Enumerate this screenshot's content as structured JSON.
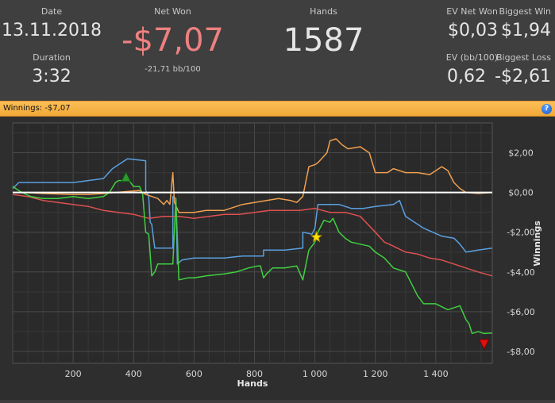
{
  "stats": {
    "date_label": "Date",
    "date_value": "13.11.2018",
    "duration_label": "Duration",
    "duration_value": "3:32",
    "net_won_label": "Net Won",
    "net_won_value": "-$7,07",
    "net_won_bb": "-21,71 bb/100",
    "hands_label": "Hands",
    "hands_value": "1587",
    "ev_net_won_label": "EV Net Won",
    "ev_net_won_value": "$0,03",
    "biggest_win_label": "Biggest Win",
    "biggest_win_value": "$1,94",
    "ev_bb_label": "EV (bb/100)",
    "ev_bb_value": "0,62",
    "biggest_loss_label": "Biggest Loss",
    "biggest_loss_value": "-$2,61"
  },
  "banner": {
    "text": "Winnings: -$7,07",
    "help_icon": "?"
  },
  "colors": {
    "net_won": "#f08080",
    "banner": "#f7b347"
  },
  "chart_data": {
    "type": "line",
    "xlabel": "Hands",
    "ylabel": "Winnings",
    "xlim": [
      0,
      1587
    ],
    "ylim": [
      -8.6,
      3.5
    ],
    "x_ticks": [
      200,
      400,
      600,
      800,
      1000,
      1200,
      1400
    ],
    "x_tick_labels": [
      "200",
      "400",
      "600",
      "800",
      "1 000",
      "1 200",
      "1 400"
    ],
    "y_ticks": [
      2,
      0,
      -2,
      -4,
      -6,
      -8
    ],
    "y_tick_labels": [
      "$2,00",
      "$0,00",
      "-$2,00",
      "-$4,00",
      "-$6,00",
      "-$8,00"
    ],
    "grid": true,
    "series": [
      {
        "color": "#5aa0e0",
        "points": [
          [
            0,
            0.2
          ],
          [
            20,
            0.5
          ],
          [
            100,
            0.5
          ],
          [
            200,
            0.5
          ],
          [
            300,
            0.7
          ],
          [
            330,
            1.2
          ],
          [
            380,
            1.7
          ],
          [
            440,
            1.6
          ],
          [
            440,
            0.1
          ],
          [
            450,
            -0.2
          ],
          [
            455,
            -1.5
          ],
          [
            460,
            -1.6
          ],
          [
            470,
            -2.8
          ],
          [
            530,
            -2.8
          ],
          [
            530,
            -0.2
          ],
          [
            540,
            -0.3
          ],
          [
            545,
            -3.6
          ],
          [
            560,
            -3.4
          ],
          [
            600,
            -3.3
          ],
          [
            700,
            -3.3
          ],
          [
            760,
            -3.2
          ],
          [
            800,
            -3.2
          ],
          [
            830,
            -3.2
          ],
          [
            830,
            -2.9
          ],
          [
            900,
            -2.9
          ],
          [
            960,
            -2.8
          ],
          [
            960,
            -2.0
          ],
          [
            990,
            -2.1
          ],
          [
            1000,
            -1.8
          ],
          [
            1010,
            -0.6
          ],
          [
            1050,
            -0.6
          ],
          [
            1080,
            -0.6
          ],
          [
            1120,
            -0.8
          ],
          [
            1160,
            -0.8
          ],
          [
            1200,
            -0.7
          ],
          [
            1260,
            -0.6
          ],
          [
            1280,
            -0.4
          ],
          [
            1300,
            -1.2
          ],
          [
            1360,
            -1.8
          ],
          [
            1420,
            -2.2
          ],
          [
            1460,
            -2.3
          ],
          [
            1480,
            -2.6
          ],
          [
            1500,
            -3.0
          ],
          [
            1540,
            -2.9
          ],
          [
            1587,
            -2.8
          ]
        ]
      },
      {
        "color": "#f0a050",
        "points": [
          [
            0,
            0.0
          ],
          [
            40,
            0.0
          ],
          [
            100,
            -0.05
          ],
          [
            200,
            -0.1
          ],
          [
            250,
            -0.1
          ],
          [
            300,
            -0.05
          ],
          [
            340,
            0.0
          ],
          [
            380,
            0.05
          ],
          [
            420,
            0.1
          ],
          [
            440,
            -0.1
          ],
          [
            480,
            -0.3
          ],
          [
            500,
            -0.6
          ],
          [
            510,
            -0.4
          ],
          [
            520,
            -0.6
          ],
          [
            530,
            1.0
          ],
          [
            535,
            -0.5
          ],
          [
            550,
            -1.0
          ],
          [
            600,
            -1.0
          ],
          [
            640,
            -0.9
          ],
          [
            700,
            -0.9
          ],
          [
            760,
            -0.6
          ],
          [
            800,
            -0.5
          ],
          [
            840,
            -0.4
          ],
          [
            880,
            -0.3
          ],
          [
            920,
            -0.4
          ],
          [
            940,
            -0.5
          ],
          [
            960,
            -0.2
          ],
          [
            980,
            1.3
          ],
          [
            1000,
            1.4
          ],
          [
            1010,
            1.5
          ],
          [
            1040,
            2.0
          ],
          [
            1050,
            2.6
          ],
          [
            1070,
            2.7
          ],
          [
            1090,
            2.4
          ],
          [
            1110,
            2.2
          ],
          [
            1150,
            2.3
          ],
          [
            1180,
            2.0
          ],
          [
            1200,
            1.0
          ],
          [
            1240,
            1.0
          ],
          [
            1260,
            1.2
          ],
          [
            1300,
            1.0
          ],
          [
            1340,
            1.0
          ],
          [
            1380,
            0.9
          ],
          [
            1420,
            1.3
          ],
          [
            1440,
            1.1
          ],
          [
            1460,
            0.5
          ],
          [
            1480,
            0.2
          ],
          [
            1500,
            0.0
          ],
          [
            1540,
            -0.05
          ],
          [
            1587,
            0.0
          ]
        ]
      },
      {
        "color": "#e05050",
        "points": [
          [
            0,
            -0.1
          ],
          [
            50,
            -0.2
          ],
          [
            100,
            -0.4
          ],
          [
            150,
            -0.5
          ],
          [
            200,
            -0.6
          ],
          [
            250,
            -0.7
          ],
          [
            300,
            -0.9
          ],
          [
            350,
            -1.0
          ],
          [
            400,
            -1.1
          ],
          [
            450,
            -1.3
          ],
          [
            500,
            -1.2
          ],
          [
            550,
            -1.2
          ],
          [
            600,
            -1.3
          ],
          [
            650,
            -1.2
          ],
          [
            700,
            -1.1
          ],
          [
            750,
            -1.1
          ],
          [
            800,
            -1.0
          ],
          [
            850,
            -0.9
          ],
          [
            900,
            -0.9
          ],
          [
            950,
            -0.9
          ],
          [
            1000,
            -0.8
          ],
          [
            1050,
            -1.0
          ],
          [
            1100,
            -1.0
          ],
          [
            1150,
            -1.2
          ],
          [
            1200,
            -2.0
          ],
          [
            1230,
            -2.5
          ],
          [
            1260,
            -2.7
          ],
          [
            1300,
            -3.0
          ],
          [
            1340,
            -3.1
          ],
          [
            1380,
            -3.3
          ],
          [
            1420,
            -3.4
          ],
          [
            1460,
            -3.6
          ],
          [
            1500,
            -3.8
          ],
          [
            1540,
            -4.0
          ],
          [
            1587,
            -4.2
          ]
        ]
      },
      {
        "color": "#40d040",
        "points": [
          [
            0,
            0.3
          ],
          [
            10,
            0.2
          ],
          [
            30,
            0.0
          ],
          [
            60,
            -0.2
          ],
          [
            100,
            -0.3
          ],
          [
            150,
            -0.3
          ],
          [
            200,
            -0.2
          ],
          [
            250,
            -0.3
          ],
          [
            300,
            -0.2
          ],
          [
            320,
            0.0
          ],
          [
            340,
            0.5
          ],
          [
            350,
            0.6
          ],
          [
            360,
            0.6
          ],
          [
            380,
            0.7
          ],
          [
            400,
            0.3
          ],
          [
            420,
            0.3
          ],
          [
            430,
            -0.1
          ],
          [
            440,
            -2.0
          ],
          [
            450,
            -2.1
          ],
          [
            460,
            -4.2
          ],
          [
            470,
            -4.0
          ],
          [
            480,
            -3.6
          ],
          [
            500,
            -3.6
          ],
          [
            530,
            -3.6
          ],
          [
            540,
            -0.3
          ],
          [
            550,
            -4.4
          ],
          [
            580,
            -4.3
          ],
          [
            600,
            -4.3
          ],
          [
            640,
            -4.2
          ],
          [
            700,
            -4.1
          ],
          [
            740,
            -4.0
          ],
          [
            780,
            -3.8
          ],
          [
            810,
            -3.7
          ],
          [
            820,
            -3.7
          ],
          [
            830,
            -4.3
          ],
          [
            840,
            -4.1
          ],
          [
            860,
            -3.8
          ],
          [
            900,
            -3.8
          ],
          [
            940,
            -3.7
          ],
          [
            960,
            -4.4
          ],
          [
            980,
            -2.9
          ],
          [
            990,
            -2.7
          ],
          [
            1000,
            -2.5
          ],
          [
            1010,
            -2.0
          ],
          [
            1030,
            -1.4
          ],
          [
            1050,
            -1.5
          ],
          [
            1060,
            -1.3
          ],
          [
            1080,
            -2.0
          ],
          [
            1100,
            -2.3
          ],
          [
            1120,
            -2.5
          ],
          [
            1150,
            -2.6
          ],
          [
            1180,
            -2.7
          ],
          [
            1200,
            -3.0
          ],
          [
            1230,
            -3.3
          ],
          [
            1260,
            -3.8
          ],
          [
            1300,
            -4.0
          ],
          [
            1320,
            -4.6
          ],
          [
            1340,
            -5.2
          ],
          [
            1360,
            -5.6
          ],
          [
            1400,
            -5.6
          ],
          [
            1440,
            -5.9
          ],
          [
            1460,
            -5.8
          ],
          [
            1480,
            -5.7
          ],
          [
            1500,
            -6.4
          ],
          [
            1510,
            -6.6
          ],
          [
            1520,
            -7.1
          ],
          [
            1540,
            -7.0
          ],
          [
            1560,
            -7.1
          ],
          [
            1587,
            -7.07
          ]
        ]
      }
    ],
    "zero_line_color": "#ffffff",
    "markers": [
      {
        "shape": "triangle-up",
        "color": "#2e9a2e",
        "x": 375,
        "y": 0.75
      },
      {
        "shape": "star",
        "color": "#ffe000",
        "x": 1005,
        "y": -2.25
      },
      {
        "shape": "triangle-down",
        "color": "#e01010",
        "x": 1560,
        "y": -7.6
      }
    ]
  }
}
